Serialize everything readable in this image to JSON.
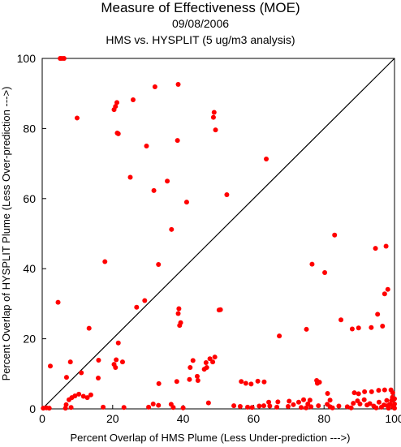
{
  "chart_data": {
    "type": "scatter",
    "title": "Measure of Effectiveness (MOE)",
    "date": "09/08/2006",
    "subtitle": "HMS vs. HYSPLIT  (5 ug/m3 analysis)",
    "xlabel": "Percent Overlap of HMS Plume (Less Under-prediction --->)",
    "ylabel": "Percent Overlap of HYSPLIT Plume (Less Over-prediction --->)",
    "xlim": [
      0,
      100
    ],
    "ylim": [
      0,
      100
    ],
    "xticks": [
      "0",
      "20",
      "40",
      "60",
      "80",
      "100"
    ],
    "yticks": [
      "0",
      "20",
      "40",
      "60",
      "80",
      "100"
    ],
    "grid": false,
    "reference_line": "y = x",
    "point_color": "#ff0000",
    "points": [
      [
        5.1,
        100
      ],
      [
        5.6,
        100
      ],
      [
        6.2,
        100
      ],
      [
        32.0,
        91.9
      ],
      [
        38.6,
        92.6
      ],
      [
        48.8,
        84.6
      ],
      [
        48.6,
        83.2
      ],
      [
        49.2,
        79.6
      ],
      [
        9.9,
        83.0
      ],
      [
        21.2,
        87.4
      ],
      [
        20.8,
        86.3
      ],
      [
        20.4,
        85.4
      ],
      [
        25.8,
        88.2
      ],
      [
        21.3,
        78.7
      ],
      [
        21.6,
        78.5
      ],
      [
        29.6,
        75.0
      ],
      [
        38.4,
        76.6
      ],
      [
        63.6,
        71.3
      ],
      [
        25.0,
        66.1
      ],
      [
        35.5,
        65.0
      ],
      [
        31.7,
        62.3
      ],
      [
        52.4,
        61.1
      ],
      [
        41.0,
        59.0
      ],
      [
        36.7,
        51.2
      ],
      [
        83.0,
        49.6
      ],
      [
        17.8,
        42.0
      ],
      [
        33.0,
        41.2
      ],
      [
        94.6,
        45.8
      ],
      [
        97.6,
        46.4
      ],
      [
        76.6,
        41.3
      ],
      [
        80.2,
        38.9
      ],
      [
        98.1,
        34.1
      ],
      [
        97.2,
        32.8
      ],
      [
        4.5,
        30.4
      ],
      [
        29.1,
        30.9
      ],
      [
        26.8,
        29.0
      ],
      [
        38.8,
        28.6
      ],
      [
        38.6,
        27.2
      ],
      [
        50.2,
        28.2
      ],
      [
        50.6,
        28.3
      ],
      [
        95.2,
        27.0
      ],
      [
        39.3,
        24.6
      ],
      [
        39.0,
        23.8
      ],
      [
        84.8,
        25.4
      ],
      [
        67.3,
        20.8
      ],
      [
        75.0,
        22.7
      ],
      [
        13.3,
        23.0
      ],
      [
        89.8,
        23.1
      ],
      [
        93.4,
        23.2
      ],
      [
        96.6,
        23.6
      ],
      [
        88.0,
        22.8
      ],
      [
        21.6,
        18.8
      ],
      [
        2.3,
        12.2
      ],
      [
        8.0,
        13.4
      ],
      [
        20.4,
        12.7
      ],
      [
        21.0,
        14.0
      ],
      [
        20.8,
        11.8
      ],
      [
        16.0,
        13.9
      ],
      [
        22.8,
        13.4
      ],
      [
        6.9,
        9.0
      ],
      [
        11.1,
        10.3
      ],
      [
        15.9,
        8.8
      ],
      [
        42.0,
        11.8
      ],
      [
        42.8,
        13.8
      ],
      [
        44.0,
        9.3
      ],
      [
        46.5,
        13.2
      ],
      [
        47.6,
        14.3
      ],
      [
        46.7,
        11.8
      ],
      [
        46.0,
        11.3
      ],
      [
        48.4,
        13.4
      ],
      [
        49.0,
        14.8
      ],
      [
        41.8,
        8.4
      ],
      [
        44.2,
        8.1
      ],
      [
        38.2,
        7.8
      ],
      [
        33.1,
        7.2
      ],
      [
        56.5,
        7.8
      ],
      [
        57.8,
        7.3
      ],
      [
        59.3,
        7.1
      ],
      [
        61.2,
        7.9
      ],
      [
        63.0,
        7.7
      ],
      [
        77.9,
        8.1
      ],
      [
        78.1,
        7.3
      ],
      [
        78.7,
        7.6
      ],
      [
        11.7,
        3.6
      ],
      [
        12.8,
        3.2
      ],
      [
        13.8,
        4.0
      ],
      [
        9.3,
        3.7
      ],
      [
        8.4,
        3.2
      ],
      [
        10.4,
        4.2
      ],
      [
        7.6,
        2.6
      ],
      [
        6.8,
        1.2
      ],
      [
        47.2,
        1.7
      ],
      [
        64.3,
        1.9
      ],
      [
        66.9,
        2.0
      ],
      [
        70.1,
        2.2
      ],
      [
        72.8,
        1.9
      ],
      [
        74.2,
        2.6
      ],
      [
        75.4,
        1.4
      ],
      [
        76.0,
        2.5
      ],
      [
        81.7,
        2.5
      ],
      [
        81.0,
        4.4
      ],
      [
        88.6,
        4.6
      ],
      [
        89.8,
        4.3
      ],
      [
        91.5,
        4.9
      ],
      [
        93.5,
        4.9
      ],
      [
        95.5,
        5.3
      ],
      [
        97.2,
        5.4
      ],
      [
        99.0,
        5.4
      ],
      [
        99.5,
        4.6
      ],
      [
        31.5,
        1.4
      ],
      [
        33.0,
        1.0
      ],
      [
        36.6,
        1.3
      ],
      [
        30.2,
        0.5
      ],
      [
        0.3,
        0.2
      ],
      [
        1.2,
        0.3
      ],
      [
        2.0,
        0.2
      ],
      [
        6.6,
        0.2
      ],
      [
        8.2,
        0.4
      ],
      [
        17.3,
        0.5
      ],
      [
        23.2,
        0.4
      ],
      [
        37.2,
        0.4
      ],
      [
        40.0,
        0.3
      ],
      [
        54.4,
        0.9
      ],
      [
        56.2,
        0.7
      ],
      [
        58.3,
        0.5
      ],
      [
        59.6,
        0.4
      ],
      [
        61.6,
        0.8
      ],
      [
        62.9,
        0.9
      ],
      [
        64.6,
        0.8
      ],
      [
        66.6,
        0.5
      ],
      [
        69.8,
        0.7
      ],
      [
        71.3,
        1.2
      ],
      [
        73.5,
        0.4
      ],
      [
        74.9,
        0.3
      ],
      [
        76.3,
        0.6
      ],
      [
        78.4,
        0.9
      ],
      [
        80.9,
        1.3
      ],
      [
        81.7,
        0.6
      ],
      [
        82.4,
        0.3
      ],
      [
        84.2,
        0.8
      ],
      [
        86.6,
        0.6
      ],
      [
        87.7,
        0.3
      ],
      [
        88.3,
        1.6
      ],
      [
        89.5,
        2.3
      ],
      [
        90.2,
        1.4
      ],
      [
        91.4,
        2.6
      ],
      [
        92.2,
        1.1
      ],
      [
        93.0,
        1.5
      ],
      [
        94.1,
        0.8
      ],
      [
        94.8,
        0.3
      ],
      [
        95.6,
        1.9
      ],
      [
        96.3,
        0.5
      ],
      [
        97.0,
        1.1
      ],
      [
        97.8,
        2.4
      ],
      [
        98.3,
        0.2
      ],
      [
        98.7,
        1.3
      ],
      [
        99.2,
        2.4
      ],
      [
        99.6,
        0.6
      ],
      [
        100.0,
        1.4
      ],
      [
        100.0,
        2.9
      ],
      [
        100.0,
        0.2
      ],
      [
        99.4,
        3.3
      ],
      [
        98.0,
        0.9
      ]
    ]
  }
}
